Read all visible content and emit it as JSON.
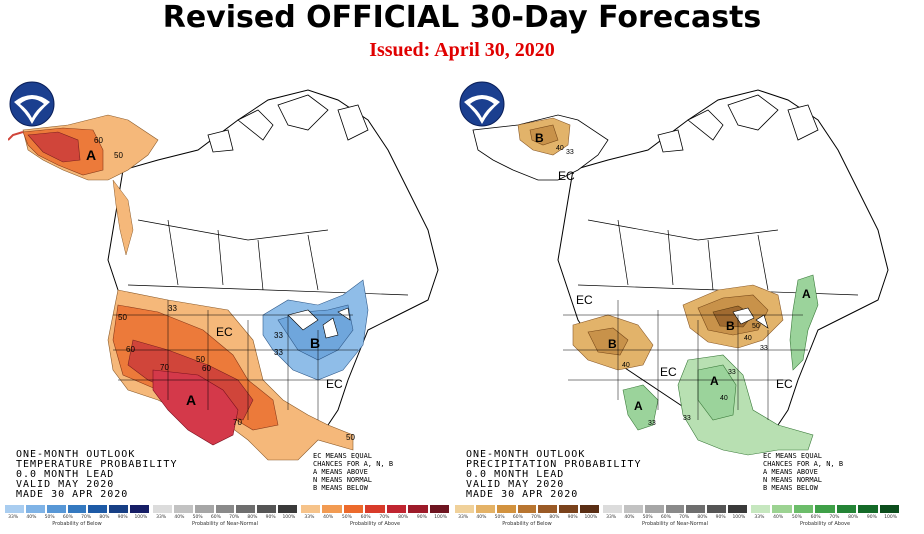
{
  "header": {
    "title": "Revised OFFICIAL 30-Day Forecasts",
    "issued": "Issued: April 30, 2020"
  },
  "colors": {
    "title": "#000000",
    "issued": "#e00000",
    "above_temp_light": "#f5b87a",
    "above_temp_mid": "#ec7a3a",
    "above_temp_dark": "#c52a2a",
    "above_temp_darkest": "#d4394a",
    "below_temp": "#6fa6dc",
    "below_temp_dark": "#3c7ec4",
    "precip_below": "#e2b36a",
    "precip_below_dark": "#b5793a",
    "precip_above": "#9bd39b",
    "precip_above_dark": "#5aa85a"
  },
  "temperature_map": {
    "info_lines": [
      "ONE-MONTH OUTLOOK",
      "TEMPERATURE PROBABILITY",
      "0.0 MONTH LEAD",
      "VALID MAY 2020",
      "MADE 30 APR 2020"
    ],
    "ec_key": [
      "EC MEANS EQUAL",
      "CHANCES FOR A, N, B",
      "A MEANS ABOVE",
      "N MEANS NORMAL",
      "B MEANS BELOW"
    ],
    "labels": {
      "alaska_a": "A",
      "alaska_60": "60",
      "alaska_50": "50",
      "west_50": "50",
      "west_60": "60",
      "west_70": "70",
      "west_a": "A",
      "sw_70": "70",
      "plains_50": "50",
      "plains_60": "60",
      "ec_central": "EC",
      "ec_southeast": "EC",
      "gl_b": "B",
      "gl_33": "33",
      "gl_33b": "33",
      "nw_33": "33",
      "fl_50": "50"
    }
  },
  "precipitation_map": {
    "info_lines": [
      "ONE-MONTH OUTLOOK",
      "PRECIPITATION PROBABILITY",
      "0.0 MONTH LEAD",
      "VALID MAY 2020",
      "MADE 30 APR 2020"
    ],
    "ec_key": [
      "EC MEANS EQUAL",
      "CHANCES FOR A, N, B",
      "A MEANS ABOVE",
      "N MEANS NORMAL",
      "B MEANS BELOW"
    ],
    "labels": {
      "alaska_b": "B",
      "alaska_40": "40",
      "alaska_33": "33",
      "ec_alaska": "EC",
      "ec_west": "EC",
      "ec_central": "EC",
      "ec_southeast": "EC",
      "nv_b": "B",
      "nv_40": "40",
      "gl_b": "B",
      "gl_40": "40",
      "gl_50": "50",
      "gl_33": "33",
      "east_a": "A",
      "tx_a": "A",
      "tx_33": "33",
      "ms_a": "A",
      "ms_40": "40",
      "ms_33": "33",
      "gulf_33": "33"
    }
  },
  "colorbars": {
    "ticks": [
      "33%",
      "40%",
      "50%",
      "60%",
      "70%",
      "80%",
      "90%",
      "100%"
    ],
    "temp_below_label": "Probability of Below",
    "temp_normal_label": "Probability of Near-Normal",
    "temp_above_label": "Probability of Above",
    "precip_below_label": "Probability of Below",
    "precip_normal_label": "Probability of Near-Normal",
    "precip_above_label": "Probability of Above",
    "temp_below_colors": [
      "#a9cdf0",
      "#7fb3e6",
      "#5797d6",
      "#3479c0",
      "#1d5aa6",
      "#173f85",
      "#161e66"
    ],
    "normal_colors": [
      "#dcdcdc",
      "#c2c2c2",
      "#a6a6a6",
      "#8a8a8a",
      "#6e6e6e",
      "#555555",
      "#3a3a3a"
    ],
    "temp_above_colors": [
      "#f6c38a",
      "#f29b52",
      "#ec6a2c",
      "#d83b2a",
      "#c02530",
      "#9d1b2a",
      "#6e1420"
    ],
    "precip_below_colors": [
      "#f0d19a",
      "#e4b266",
      "#d2923e",
      "#b87530",
      "#9a5a26",
      "#7a421c",
      "#5a2e14"
    ],
    "precip_above_colors": [
      "#c6e7bf",
      "#9cd392",
      "#6cbd6a",
      "#3fa048",
      "#248436",
      "#146a28",
      "#0b4d1c"
    ]
  }
}
